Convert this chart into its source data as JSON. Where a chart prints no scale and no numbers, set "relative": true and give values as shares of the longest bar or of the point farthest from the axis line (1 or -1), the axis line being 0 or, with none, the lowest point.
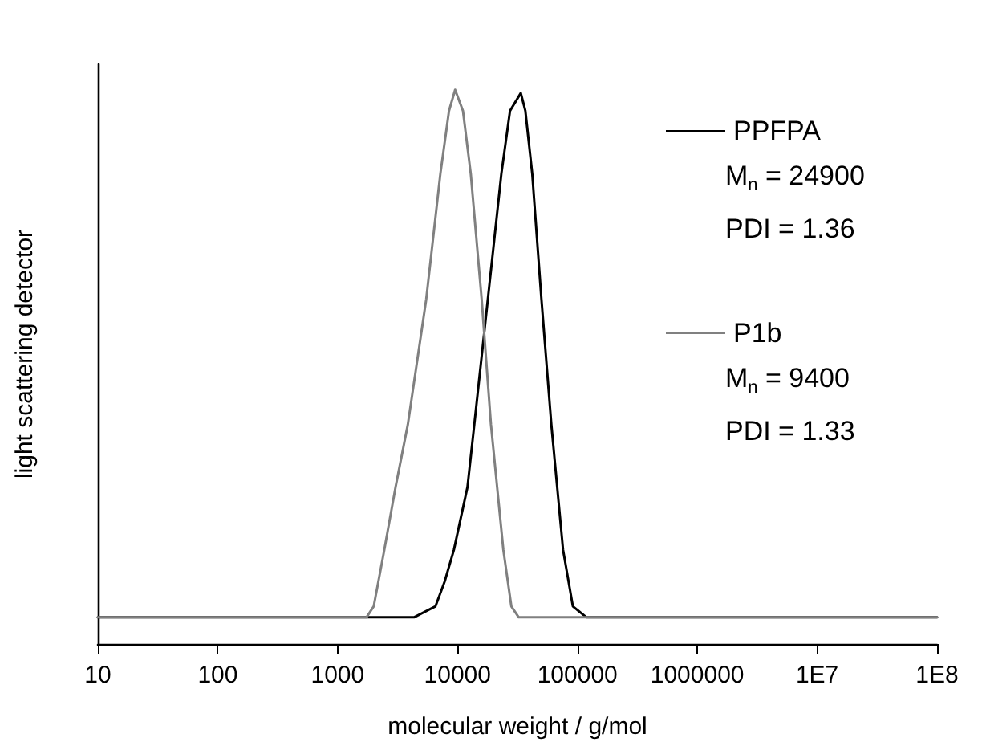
{
  "chart_data": {
    "type": "line",
    "relative": true,
    "xlabel": "molecular weight / g/mol",
    "ylabel": "light scattering detector",
    "log": "x",
    "xlim": [
      10,
      100000000
    ],
    "xticks": [
      10,
      100,
      1000,
      10000,
      100000,
      1000000,
      {
        "value": 10000000,
        "label": "1E7"
      },
      {
        "value": 100000000,
        "label": "1E8"
      }
    ],
    "grid": false,
    "legend": "top right",
    "marker": "none",
    "line_style": "solid",
    "series": [
      {
        "name": "PPFPA",
        "color": "#000000",
        "x": [
          10,
          4330,
          6550,
          7820,
          9330,
          12100,
          13800,
          17900,
          23200,
          27400,
          33700,
          36800,
          42000,
          50100,
          60600,
          75900,
          91600,
          119000,
          100000000
        ],
        "values": [
          0.048,
          0.048,
          0.068,
          0.113,
          0.17,
          0.283,
          0.396,
          0.622,
          0.848,
          0.962,
          0.994,
          0.962,
          0.848,
          0.622,
          0.396,
          0.17,
          0.068,
          0.048,
          0.048
        ]
      },
      {
        "name": "P1b",
        "color": "#808080",
        "x": [
          10,
          1740,
          2000,
          2450,
          3040,
          3850,
          5480,
          7190,
          8490,
          9550,
          11100,
          12900,
          15900,
          19000,
          24100,
          28100,
          32400,
          100000000
        ],
        "values": [
          0.048,
          0.048,
          0.068,
          0.17,
          0.283,
          0.396,
          0.622,
          0.848,
          0.962,
          1,
          0.962,
          0.848,
          0.622,
          0.396,
          0.17,
          0.068,
          0.048,
          0.048
        ]
      }
    ],
    "annotations": [
      "M$_{n}$ = 24900",
      "PDI = 1.36",
      "M$_{n}$ = 9400",
      "PDI = 1.33"
    ]
  }
}
